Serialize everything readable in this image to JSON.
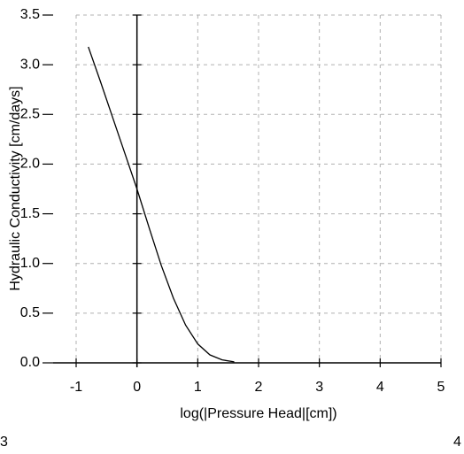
{
  "chart_data": {
    "type": "line",
    "y_label": "Hydraulic Conductivity [cm/days]",
    "x_label": "log(|Pressure Head|[cm])",
    "x": [
      -0.8,
      -0.6,
      -0.4,
      -0.2,
      0,
      0.2,
      0.4,
      0.6,
      0.8,
      1.0,
      1.2,
      1.4,
      1.6
    ],
    "series": [
      {
        "color": "#000000",
        "values": [
          3.18,
          2.83,
          2.47,
          2.11,
          1.75,
          1.36,
          0.98,
          0.65,
          0.38,
          0.19,
          0.08,
          0.03,
          0.01
        ]
      }
    ],
    "xlim": [
      -1,
      5
    ],
    "xticks": [
      -1,
      0,
      1,
      2,
      3,
      4,
      5
    ],
    "ylim": [
      0,
      3.5
    ],
    "yticks": [
      {
        "value": 0,
        "label": "0.0"
      },
      {
        "value": 0.5,
        "label": "0.5"
      },
      {
        "value": 1,
        "label": "1.0"
      },
      {
        "value": 1.5,
        "label": "1.5"
      },
      {
        "value": 2,
        "label": "2.0"
      },
      {
        "value": 2.5,
        "label": "2.5"
      },
      {
        "value": 3,
        "label": "3.0"
      },
      {
        "value": 3.5,
        "label": "3.5"
      }
    ],
    "grid": true
  },
  "page_fragments": {
    "left": "3",
    "right": "4"
  }
}
